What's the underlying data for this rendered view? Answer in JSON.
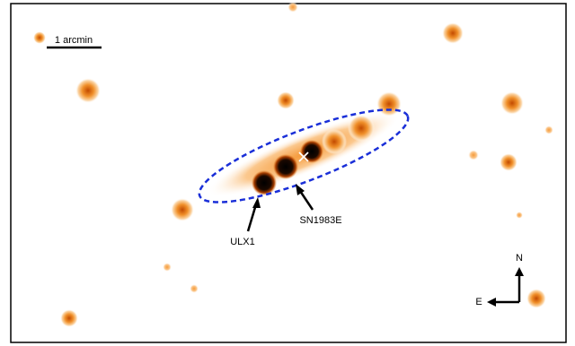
{
  "scale_bar": {
    "label": "1 arcmin"
  },
  "annotations": [
    {
      "label": "ULX1"
    },
    {
      "label": "SN1983E"
    }
  ],
  "compass": {
    "north": "N",
    "east": "E"
  }
}
